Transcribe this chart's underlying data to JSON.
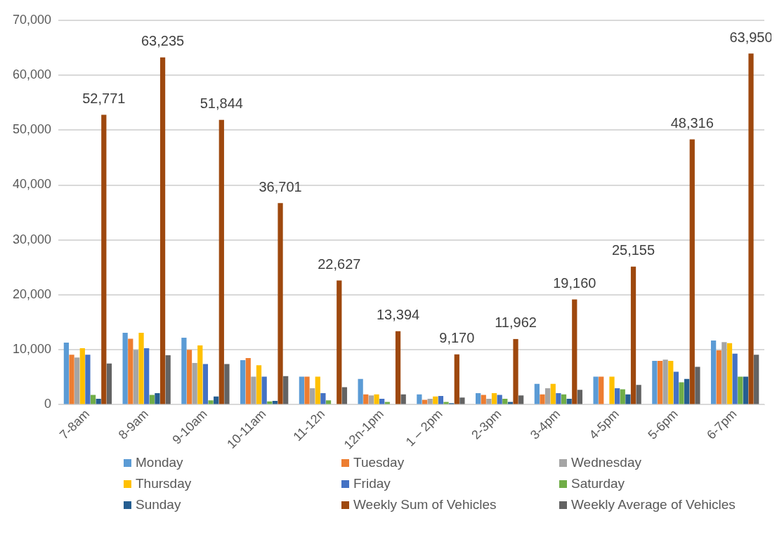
{
  "chart_data": {
    "type": "bar",
    "categories": [
      "7-8am",
      "8-9am",
      "9-10am",
      "10-11am",
      "11-12n",
      "12n-1pm",
      "1 – 2pm",
      "2-3pm",
      "3-4pm",
      "4-5pm",
      "5-6pm",
      "6-7pm"
    ],
    "series": [
      {
        "name": "Monday",
        "color": "#5b9bd5",
        "values": [
          11300,
          13100,
          12200,
          8100,
          5100,
          4700,
          1900,
          2100,
          3800,
          5100,
          8000,
          11700
        ]
      },
      {
        "name": "Tuesday",
        "color": "#ed7d31",
        "values": [
          9100,
          12000,
          10000,
          8500,
          5100,
          1900,
          900,
          1800,
          1900,
          5100,
          8000,
          9900
        ]
      },
      {
        "name": "Wednesday",
        "color": "#a5a5a5",
        "values": [
          8600,
          10000,
          7600,
          5100,
          3000,
          1700,
          1100,
          1100,
          3000,
          0,
          8200,
          11400
        ]
      },
      {
        "name": "Thursday",
        "color": "#ffc000",
        "values": [
          10300,
          13100,
          10800,
          7200,
          5100,
          1900,
          1500,
          2100,
          3800,
          5100,
          8000,
          11200
        ]
      },
      {
        "name": "Friday",
        "color": "#4472c4",
        "values": [
          9100,
          10300,
          7400,
          5100,
          2100,
          1100,
          1600,
          1800,
          2100,
          3000,
          6000,
          9300
        ]
      },
      {
        "name": "Saturday",
        "color": "#70ad47",
        "values": [
          1800,
          1800,
          800,
          600,
          800,
          500,
          500,
          1100,
          1900,
          2800,
          4100,
          5100
        ]
      },
      {
        "name": "Sunday",
        "color": "#255e91",
        "values": [
          1100,
          2100,
          1500,
          700,
          null,
          null,
          300,
          500,
          1100,
          1900,
          4700,
          5100
        ]
      },
      {
        "name": "Weekly Sum of Vehicles",
        "color": "#9e480e",
        "values": [
          52771,
          63235,
          51844,
          36701,
          22627,
          13394,
          9170,
          11962,
          19160,
          25155,
          48316,
          63950
        ],
        "value_labels": [
          "52,771",
          "63,235",
          "51,844",
          "36,701",
          "22,627",
          "13,394",
          "9,170",
          "11,962",
          "19,160",
          "25,155",
          "48,316",
          "63,950"
        ]
      },
      {
        "name": "Weekly Average of Vehicles",
        "color": "#636363",
        "values": [
          7500,
          9000,
          7400,
          5200,
          3200,
          1900,
          1300,
          1700,
          2700,
          3600,
          6900,
          9100
        ]
      }
    ],
    "ylim": [
      0,
      70000
    ],
    "yticks": [
      {
        "value": 0,
        "label": "0"
      },
      {
        "value": 10000,
        "label": "10,000"
      },
      {
        "value": 20000,
        "label": "20,000"
      },
      {
        "value": 30000,
        "label": "30,000"
      },
      {
        "value": 40000,
        "label": "40,000"
      },
      {
        "value": 50000,
        "label": "50,000"
      },
      {
        "value": 60000,
        "label": "60,000"
      },
      {
        "value": 70000,
        "label": "70,000"
      }
    ],
    "grid": "y",
    "legend": "bottom"
  }
}
